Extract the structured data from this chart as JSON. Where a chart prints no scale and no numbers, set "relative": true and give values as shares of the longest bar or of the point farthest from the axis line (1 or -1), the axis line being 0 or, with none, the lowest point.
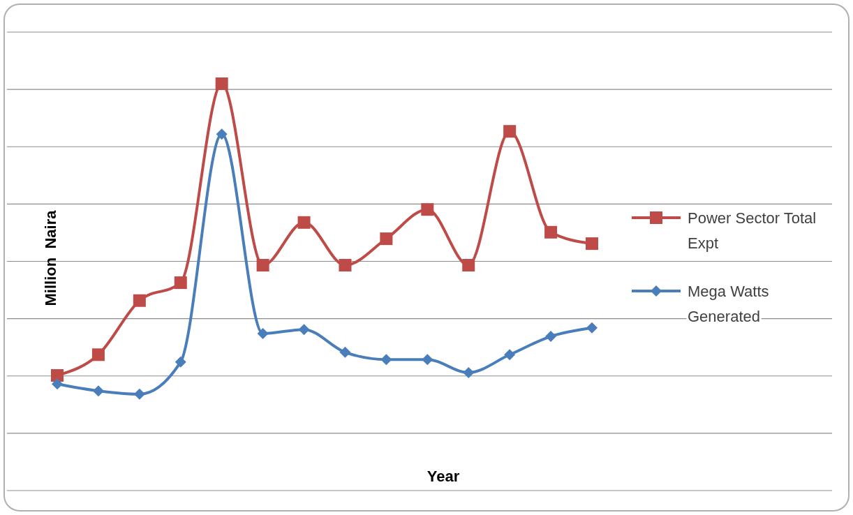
{
  "chart_data": {
    "type": "line",
    "relative": true,
    "xlabel": "Year",
    "ylabel": "Million  Naira",
    "categories": [
      null,
      null,
      null,
      null,
      null,
      null,
      null,
      null,
      null,
      null,
      null,
      null,
      null,
      null
    ],
    "series": [
      {
        "name": "Power Sector Total Expt",
        "color": "#be4b48",
        "marker": "square",
        "values": [
          0.283,
          0.334,
          0.467,
          0.511,
          1,
          0.554,
          0.659,
          0.554,
          0.619,
          0.691,
          0.554,
          0.883,
          0.635,
          0.607
        ]
      },
      {
        "name": "Mega Watts Generated",
        "color": "#4a7ebb",
        "marker": "diamond",
        "values": [
          0.262,
          0.245,
          0.237,
          0.316,
          0.876,
          0.386,
          0.396,
          0.34,
          0.322,
          0.322,
          0.29,
          0.334,
          0.379,
          0.4
        ]
      }
    ],
    "grid": "y",
    "legend": "right",
    "line_style": "solid"
  }
}
